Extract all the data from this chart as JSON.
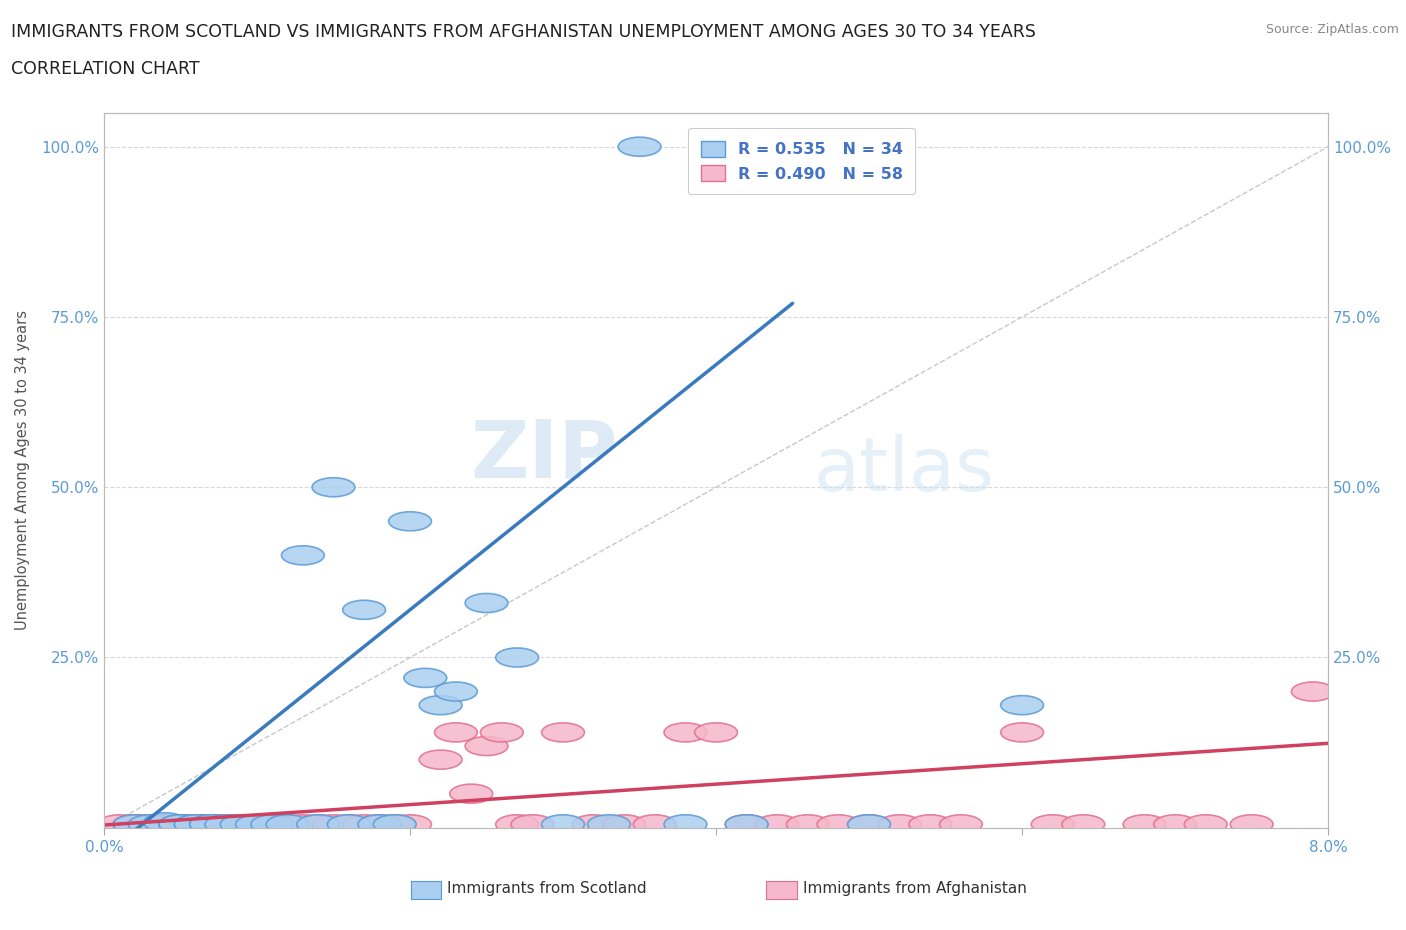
{
  "title_line1": "IMMIGRANTS FROM SCOTLAND VS IMMIGRANTS FROM AFGHANISTAN UNEMPLOYMENT AMONG AGES 30 TO 34 YEARS",
  "title_line2": "CORRELATION CHART",
  "source_text": "Source: ZipAtlas.com",
  "ylabel": "Unemployment Among Ages 30 to 34 years",
  "xlim": [
    0.0,
    0.08
  ],
  "ylim": [
    0.0,
    1.05
  ],
  "scotland_color": "#aacff0",
  "scotland_edge_color": "#5b9bd5",
  "afghanistan_color": "#f5b8cc",
  "afghanistan_edge_color": "#e07090",
  "scotland_R": 0.535,
  "scotland_N": 34,
  "afghanistan_R": 0.49,
  "afghanistan_N": 58,
  "scotland_line_color": "#3a7abf",
  "afghanistan_line_color": "#d04060",
  "diag_line_color": "#c8c8c8",
  "watermark_zip": "ZIP",
  "watermark_atlas": "atlas",
  "legend_R_color": "#4472c4",
  "scotland_x": [
    0.002,
    0.003,
    0.004,
    0.005,
    0.005,
    0.006,
    0.006,
    0.007,
    0.007,
    0.008,
    0.009,
    0.01,
    0.011,
    0.012,
    0.013,
    0.014,
    0.015,
    0.016,
    0.017,
    0.018,
    0.019,
    0.02,
    0.021,
    0.022,
    0.023,
    0.025,
    0.027,
    0.03,
    0.033,
    0.035,
    0.038,
    0.042,
    0.05,
    0.06
  ],
  "scotland_y": [
    0.005,
    0.005,
    0.008,
    0.005,
    0.005,
    0.005,
    0.005,
    0.005,
    0.005,
    0.005,
    0.005,
    0.005,
    0.005,
    0.005,
    0.4,
    0.005,
    0.5,
    0.005,
    0.32,
    0.005,
    0.005,
    0.45,
    0.22,
    0.18,
    0.2,
    0.33,
    0.25,
    0.005,
    0.005,
    1.0,
    0.005,
    0.005,
    0.005,
    0.18
  ],
  "afghanistan_x": [
    0.001,
    0.002,
    0.002,
    0.003,
    0.003,
    0.004,
    0.004,
    0.005,
    0.005,
    0.006,
    0.006,
    0.007,
    0.007,
    0.008,
    0.008,
    0.009,
    0.009,
    0.01,
    0.01,
    0.011,
    0.012,
    0.013,
    0.014,
    0.015,
    0.016,
    0.017,
    0.018,
    0.019,
    0.02,
    0.022,
    0.023,
    0.024,
    0.025,
    0.026,
    0.027,
    0.028,
    0.03,
    0.032,
    0.034,
    0.036,
    0.038,
    0.04,
    0.042,
    0.044,
    0.046,
    0.048,
    0.05,
    0.052,
    0.054,
    0.056,
    0.06,
    0.062,
    0.064,
    0.068,
    0.07,
    0.072,
    0.075,
    0.079
  ],
  "afghanistan_y": [
    0.005,
    0.005,
    0.005,
    0.005,
    0.005,
    0.005,
    0.005,
    0.005,
    0.005,
    0.005,
    0.005,
    0.005,
    0.005,
    0.005,
    0.005,
    0.005,
    0.005,
    0.005,
    0.005,
    0.005,
    0.005,
    0.005,
    0.005,
    0.005,
    0.005,
    0.005,
    0.005,
    0.005,
    0.005,
    0.1,
    0.14,
    0.05,
    0.12,
    0.14,
    0.005,
    0.005,
    0.14,
    0.005,
    0.005,
    0.005,
    0.14,
    0.14,
    0.005,
    0.005,
    0.005,
    0.005,
    0.005,
    0.005,
    0.005,
    0.005,
    0.14,
    0.005,
    0.005,
    0.005,
    0.005,
    0.005,
    0.005,
    0.2
  ],
  "background_color": "#ffffff",
  "grid_color": "#d8d8d8"
}
